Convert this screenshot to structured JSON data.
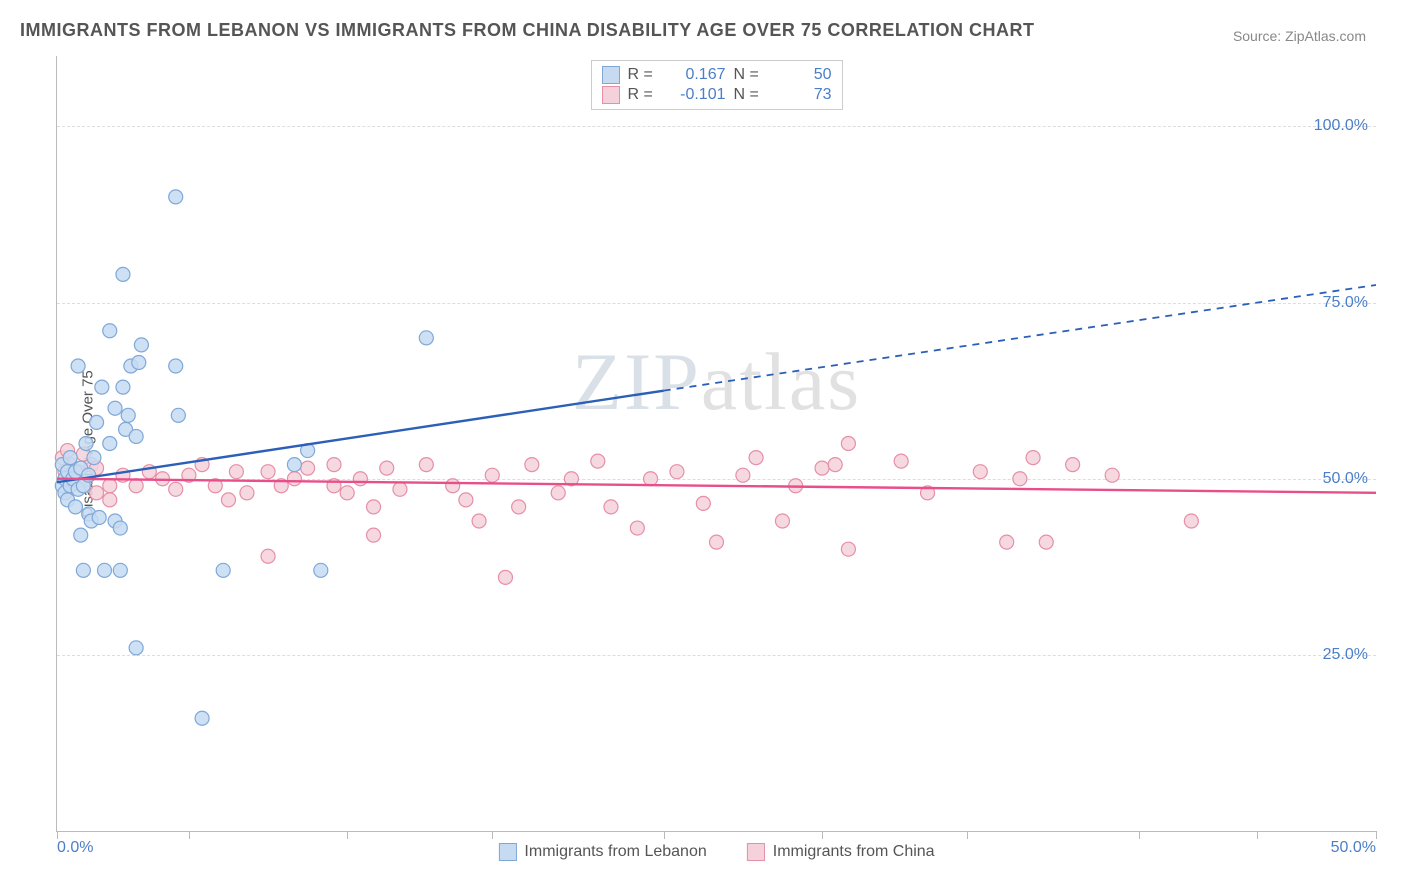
{
  "title": "IMMIGRANTS FROM LEBANON VS IMMIGRANTS FROM CHINA DISABILITY AGE OVER 75 CORRELATION CHART",
  "source": "Source: ZipAtlas.com",
  "watermark_zip": "ZIP",
  "watermark_atlas": "atlas",
  "chart": {
    "type": "scatter",
    "ylabel": "Disability Age Over 75",
    "xlim": [
      0,
      50
    ],
    "ylim": [
      0,
      110
    ],
    "x_tick_positions": [
      0,
      5,
      11,
      16.5,
      23,
      29,
      34.5,
      41,
      45.5,
      50
    ],
    "x_tick_labels": {
      "min": "0.0%",
      "max": "50.0%"
    },
    "y_gridlines": [
      25,
      50,
      75,
      100
    ],
    "y_tick_labels": [
      "25.0%",
      "50.0%",
      "75.0%",
      "100.0%"
    ],
    "grid_color": "#dddddd",
    "axis_color": "#bbbbbb",
    "tick_label_color": "#4a7ec9",
    "background": "#ffffff",
    "marker_radius": 7,
    "marker_stroke_width": 1.2,
    "line_width": 2.4,
    "series": [
      {
        "id": "lebanon",
        "name": "Immigrants from Lebanon",
        "fill": "#c6dbf2",
        "stroke": "#7fa8d8",
        "line_color": "#2b5fb8",
        "R": "0.167",
        "N": "50",
        "trend_solid": {
          "x1": 0,
          "y1": 49.5,
          "x2": 23,
          "y2": 62.5
        },
        "trend_dash": {
          "x1": 23,
          "y1": 62.5,
          "x2": 50,
          "y2": 77.5
        },
        "points": [
          [
            0.2,
            49
          ],
          [
            0.2,
            52
          ],
          [
            0.3,
            50
          ],
          [
            0.3,
            48
          ],
          [
            0.4,
            51
          ],
          [
            0.4,
            47
          ],
          [
            0.5,
            53
          ],
          [
            0.5,
            49
          ],
          [
            0.6,
            50
          ],
          [
            0.7,
            51
          ],
          [
            0.8,
            48.5
          ],
          [
            0.9,
            51.5
          ],
          [
            1.0,
            49
          ],
          [
            1.2,
            50.5
          ],
          [
            1.4,
            53
          ],
          [
            1.2,
            45
          ],
          [
            1.3,
            44
          ],
          [
            1.6,
            44.5
          ],
          [
            0.7,
            46
          ],
          [
            0.9,
            42
          ],
          [
            2.2,
            44
          ],
          [
            2.4,
            43
          ],
          [
            1.0,
            37
          ],
          [
            1.8,
            37
          ],
          [
            2.4,
            37
          ],
          [
            6.3,
            37
          ],
          [
            1.1,
            55
          ],
          [
            1.5,
            58
          ],
          [
            2.0,
            55
          ],
          [
            2.6,
            57
          ],
          [
            3.0,
            56
          ],
          [
            2.2,
            60
          ],
          [
            2.7,
            59
          ],
          [
            4.6,
            59
          ],
          [
            1.7,
            63
          ],
          [
            2.5,
            63
          ],
          [
            0.8,
            66
          ],
          [
            2.8,
            66
          ],
          [
            3.1,
            66.5
          ],
          [
            4.5,
            66
          ],
          [
            2.0,
            71
          ],
          [
            3.2,
            69
          ],
          [
            14.0,
            70
          ],
          [
            2.5,
            79
          ],
          [
            4.5,
            90
          ],
          [
            3.0,
            26
          ],
          [
            5.5,
            16
          ],
          [
            9.0,
            52
          ],
          [
            9.5,
            54
          ],
          [
            10,
            37
          ]
        ]
      },
      {
        "id": "china",
        "name": "Immigrants from China",
        "fill": "#f5d2db",
        "stroke": "#e68fa6",
        "line_color": "#e84f8a",
        "R": "-0.101",
        "N": "73",
        "trend_solid": {
          "x1": 0,
          "y1": 50,
          "x2": 50,
          "y2": 48
        },
        "trend_dash": null,
        "points": [
          [
            0.3,
            51
          ],
          [
            0.4,
            49.5
          ],
          [
            0.5,
            52
          ],
          [
            0.6,
            50
          ],
          [
            0.8,
            51
          ],
          [
            1.0,
            49
          ],
          [
            1.3,
            52
          ],
          [
            1.5,
            48
          ],
          [
            1.5,
            51.5
          ],
          [
            2.0,
            49
          ],
          [
            2.5,
            50.5
          ],
          [
            3.0,
            49
          ],
          [
            3.5,
            51
          ],
          [
            4,
            50
          ],
          [
            4.5,
            48.5
          ],
          [
            5,
            50.5
          ],
          [
            5.5,
            52
          ],
          [
            6,
            49
          ],
          [
            6.5,
            47
          ],
          [
            6.8,
            51
          ],
          [
            7.2,
            48
          ],
          [
            8,
            51
          ],
          [
            8.5,
            49
          ],
          [
            9,
            50
          ],
          [
            9.5,
            51.5
          ],
          [
            10.5,
            49
          ],
          [
            10.5,
            52
          ],
          [
            11,
            48
          ],
          [
            11.5,
            50
          ],
          [
            12,
            46
          ],
          [
            12.5,
            51.5
          ],
          [
            13,
            48.5
          ],
          [
            14,
            52
          ],
          [
            15,
            49
          ],
          [
            15.5,
            47
          ],
          [
            16,
            44
          ],
          [
            16.5,
            50.5
          ],
          [
            17.5,
            46
          ],
          [
            18,
            52
          ],
          [
            19,
            48
          ],
          [
            19.5,
            50
          ],
          [
            20.5,
            52.5
          ],
          [
            21,
            46
          ],
          [
            22,
            43
          ],
          [
            22.5,
            50
          ],
          [
            23.5,
            51
          ],
          [
            24.5,
            46.5
          ],
          [
            25,
            41
          ],
          [
            26,
            50.5
          ],
          [
            26.5,
            53
          ],
          [
            27.5,
            44
          ],
          [
            28,
            49
          ],
          [
            29,
            51.5
          ],
          [
            29.5,
            52
          ],
          [
            30,
            55
          ],
          [
            30,
            40
          ],
          [
            32,
            52.5
          ],
          [
            33,
            48
          ],
          [
            35,
            51
          ],
          [
            36,
            41
          ],
          [
            36.5,
            50
          ],
          [
            37,
            53
          ],
          [
            37.5,
            41
          ],
          [
            38.5,
            52
          ],
          [
            40,
            50.5
          ],
          [
            43,
            44
          ],
          [
            8,
            39
          ],
          [
            12,
            42
          ],
          [
            17,
            36
          ],
          [
            1.0,
            53.5
          ],
          [
            0.2,
            53
          ],
          [
            0.4,
            54
          ],
          [
            2,
            47
          ]
        ]
      }
    ]
  },
  "legend": {
    "r_label": "R =",
    "n_label": "N ="
  }
}
